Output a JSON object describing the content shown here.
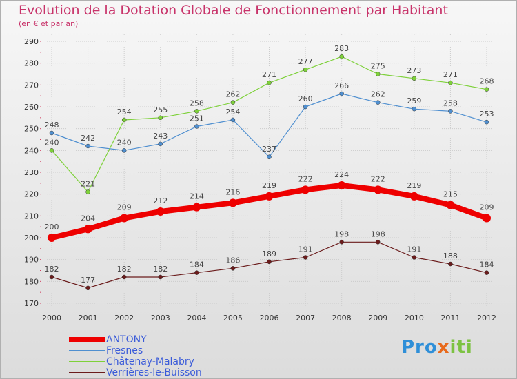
{
  "header": {
    "title": "Evolution de la Dotation Globale de Fonctionnement par Habitant",
    "subtitle": "(en € et par an)"
  },
  "brand": {
    "part1": "Pro",
    "part2": "x",
    "part3": "iti"
  },
  "chart_data": {
    "type": "line",
    "title": "Evolution de la Dotation Globale de Fonctionnement par Habitant",
    "subtitle": "(en € et par an)",
    "xlabel": "",
    "ylabel": "",
    "x": [
      "2000",
      "2001",
      "2002",
      "2003",
      "2004",
      "2005",
      "2006",
      "2007",
      "2008",
      "2009",
      "2010",
      "2011",
      "2012"
    ],
    "ylim": [
      170,
      290
    ],
    "yticks": [
      170,
      180,
      190,
      200,
      210,
      220,
      230,
      240,
      250,
      260,
      270,
      280,
      290
    ],
    "grid": true,
    "legend_position": "bottom-left",
    "series": [
      {
        "name": "ANTONY",
        "color": "#ee0000",
        "emphasis": true,
        "values": [
          200,
          204,
          209,
          212,
          214,
          216,
          219,
          222,
          224,
          222,
          219,
          215,
          209
        ]
      },
      {
        "name": "Fresnes",
        "color": "#4f8fd0",
        "emphasis": false,
        "values": [
          248,
          242,
          240,
          243,
          251,
          254,
          237,
          260,
          266,
          262,
          259,
          258,
          253
        ]
      },
      {
        "name": "Châtenay-Malabry",
        "color": "#7ed13a",
        "emphasis": false,
        "values": [
          240,
          221,
          254,
          255,
          258,
          262,
          271,
          277,
          283,
          275,
          273,
          271,
          268
        ]
      },
      {
        "name": "Verrières-le-Buisson",
        "color": "#6b1c1c",
        "emphasis": false,
        "values": [
          182,
          177,
          182,
          182,
          184,
          186,
          189,
          191,
          198,
          198,
          191,
          188,
          184
        ]
      }
    ]
  }
}
